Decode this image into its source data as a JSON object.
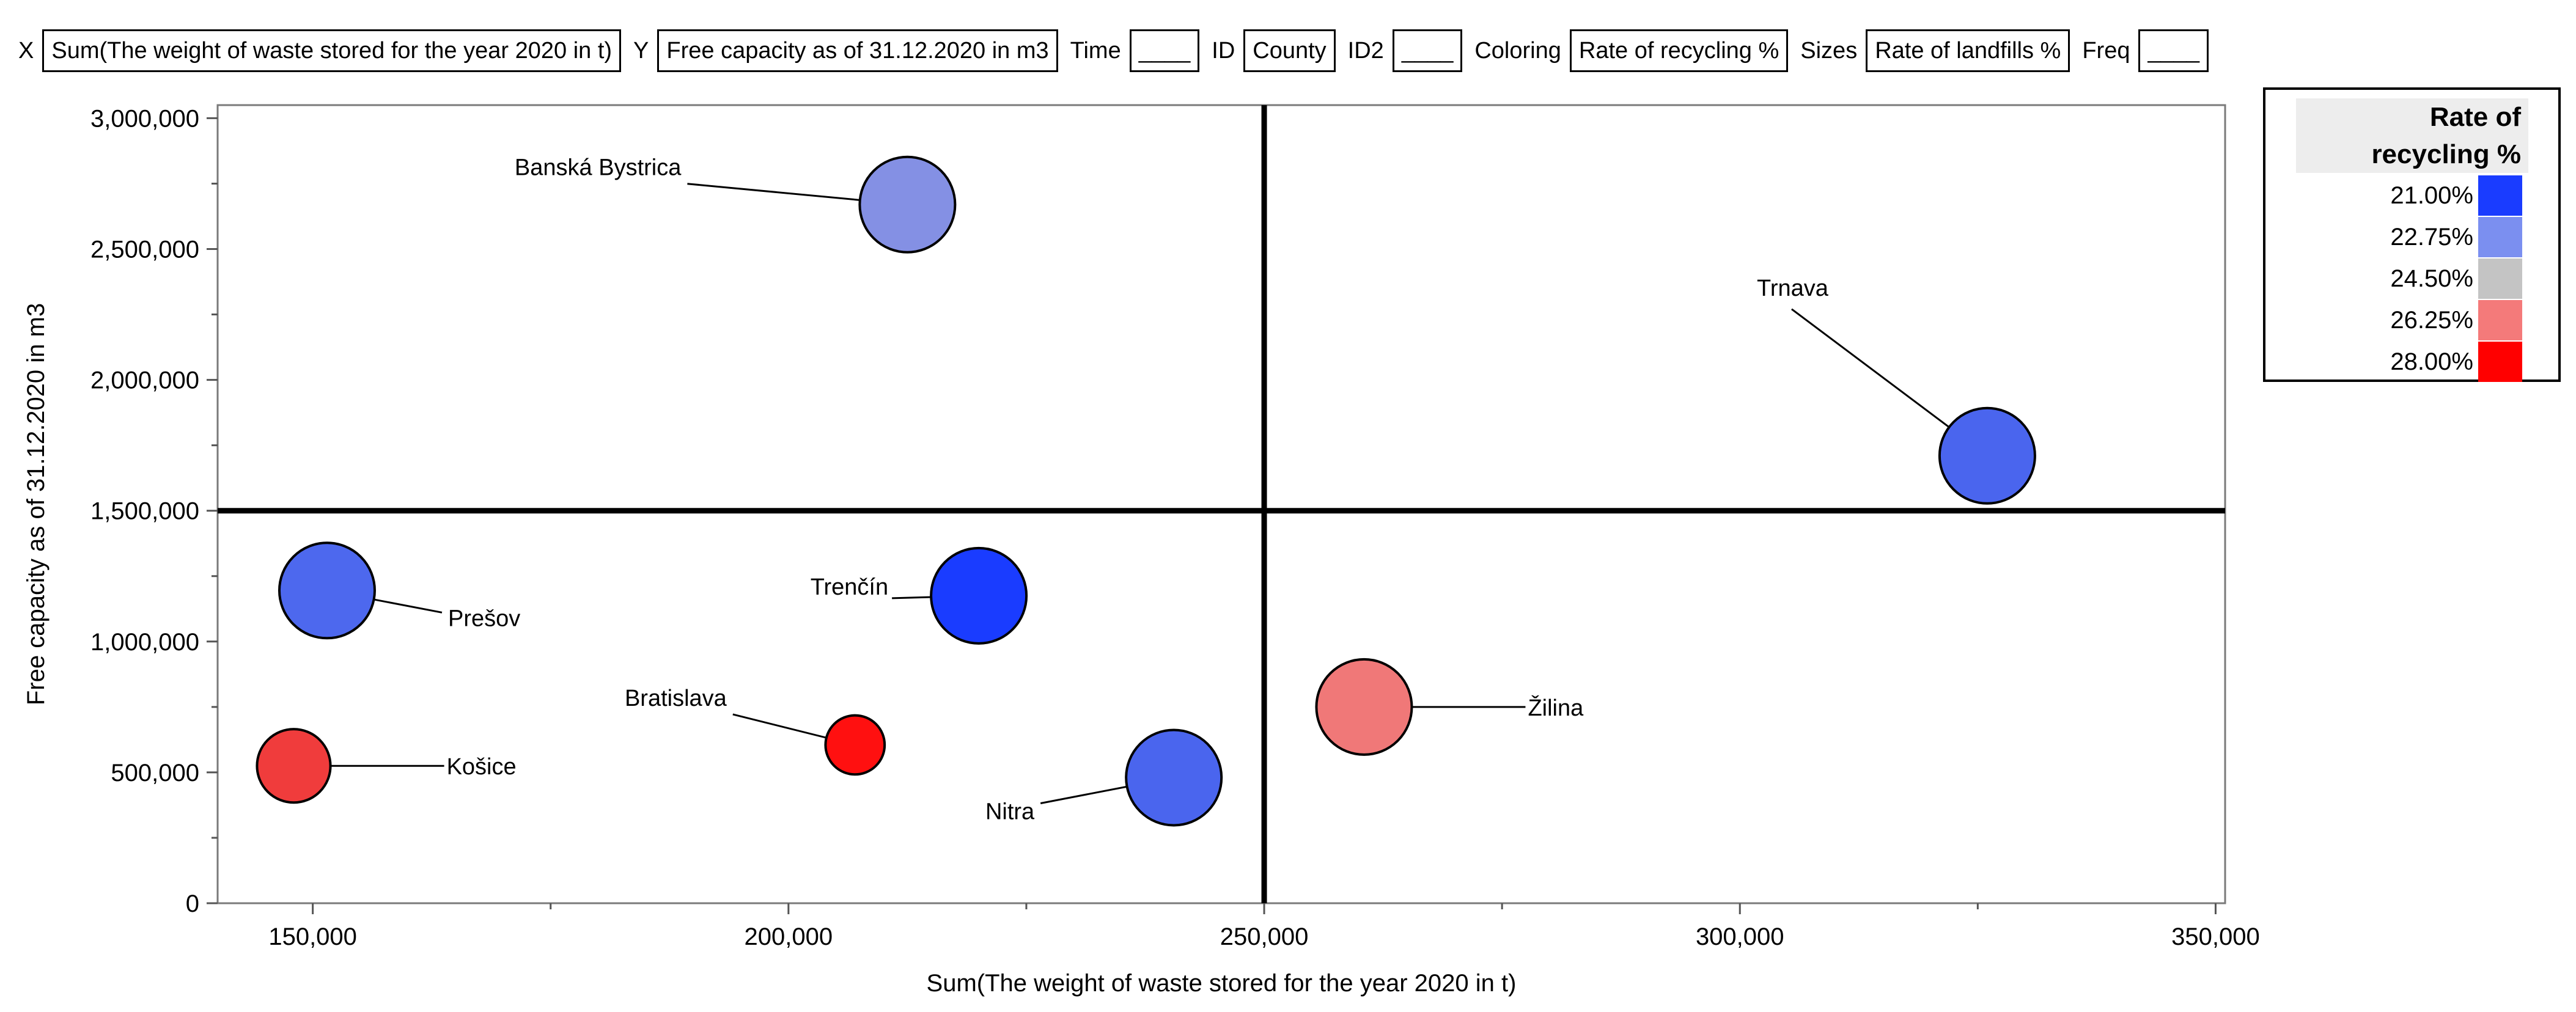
{
  "roles": {
    "x_label": "X",
    "x_value": "Sum(The weight of waste stored for the year 2020 in t)",
    "y_label": "Y",
    "y_value": "Free capacity as of 31.12.2020 in m3",
    "time_label": "Time",
    "time_value": "____",
    "id_label": "ID",
    "id_value": "County",
    "id2_label": "ID2",
    "id2_value": "____",
    "coloring_label": "Coloring",
    "coloring_value": "Rate of recycling %",
    "sizes_label": "Sizes",
    "sizes_value": "Rate of landfills %",
    "freq_label": "Freq",
    "freq_value": "____"
  },
  "legend": {
    "title_line1": "Rate of",
    "title_line2": "recycling %",
    "items": [
      {
        "label": "21.00%",
        "color": "#1a3cff"
      },
      {
        "label": "22.75%",
        "color": "#7b8ff0"
      },
      {
        "label": "24.50%",
        "color": "#c4c4c4"
      },
      {
        "label": "26.25%",
        "color": "#f47a7a"
      },
      {
        "label": "28.00%",
        "color": "#ff0000"
      }
    ]
  },
  "chart_data": {
    "type": "scatter",
    "title": "",
    "xlabel": "Sum(The weight of waste stored for the year 2020 in t)",
    "ylabel": "Free capacity as of 31.12.2020 in m3",
    "xlim": [
      140000,
      351000
    ],
    "ylim": [
      0,
      3050000
    ],
    "x_ticks": [
      150000,
      200000,
      250000,
      300000,
      350000
    ],
    "x_tick_labels": [
      "150,000",
      "200,000",
      "250,000",
      "300,000",
      "350,000"
    ],
    "y_ticks": [
      0,
      500000,
      1000000,
      1500000,
      2000000,
      2500000,
      3000000
    ],
    "y_tick_labels": [
      "0",
      "500,000",
      "1,000,000",
      "1,500,000",
      "2,000,000",
      "2,500,000",
      "3,000,000"
    ],
    "reference_lines": {
      "x": 250000,
      "y": 1500000
    },
    "points": [
      {
        "name": "Banská Bystrica",
        "x": 212500,
        "y": 2670000,
        "recycling": 22.5,
        "landfill_rate": 1.0,
        "color": "#8490e4",
        "label_pos": "upper-left"
      },
      {
        "name": "Trnava",
        "x": 326000,
        "y": 1710000,
        "recycling": 21.6,
        "landfill_rate": 1.0,
        "color": "#4a65ee",
        "label_pos": "upper-left"
      },
      {
        "name": "Prešov",
        "x": 151500,
        "y": 1195000,
        "recycling": 21.8,
        "landfill_rate": 1.0,
        "color": "#4d68ee",
        "label_pos": "lower-right"
      },
      {
        "name": "Trenčín",
        "x": 220000,
        "y": 1175000,
        "recycling": 21.0,
        "landfill_rate": 1.0,
        "color": "#1a3cff",
        "label_pos": "left"
      },
      {
        "name": "Košice",
        "x": 148000,
        "y": 525000,
        "recycling": 27.3,
        "landfill_rate": 0.77,
        "color": "#f03c3c",
        "label_pos": "right"
      },
      {
        "name": "Bratislava",
        "x": 207000,
        "y": 605000,
        "recycling": 28.0,
        "landfill_rate": 0.62,
        "color": "#ff1010",
        "label_pos": "upper-left"
      },
      {
        "name": "Nitra",
        "x": 240500,
        "y": 480000,
        "recycling": 21.6,
        "landfill_rate": 1.0,
        "color": "#4a65ee",
        "label_pos": "lower-left"
      },
      {
        "name": "Žilina",
        "x": 260500,
        "y": 750000,
        "recycling": 26.0,
        "landfill_rate": 1.0,
        "color": "#f07878",
        "label_pos": "right"
      }
    ]
  }
}
